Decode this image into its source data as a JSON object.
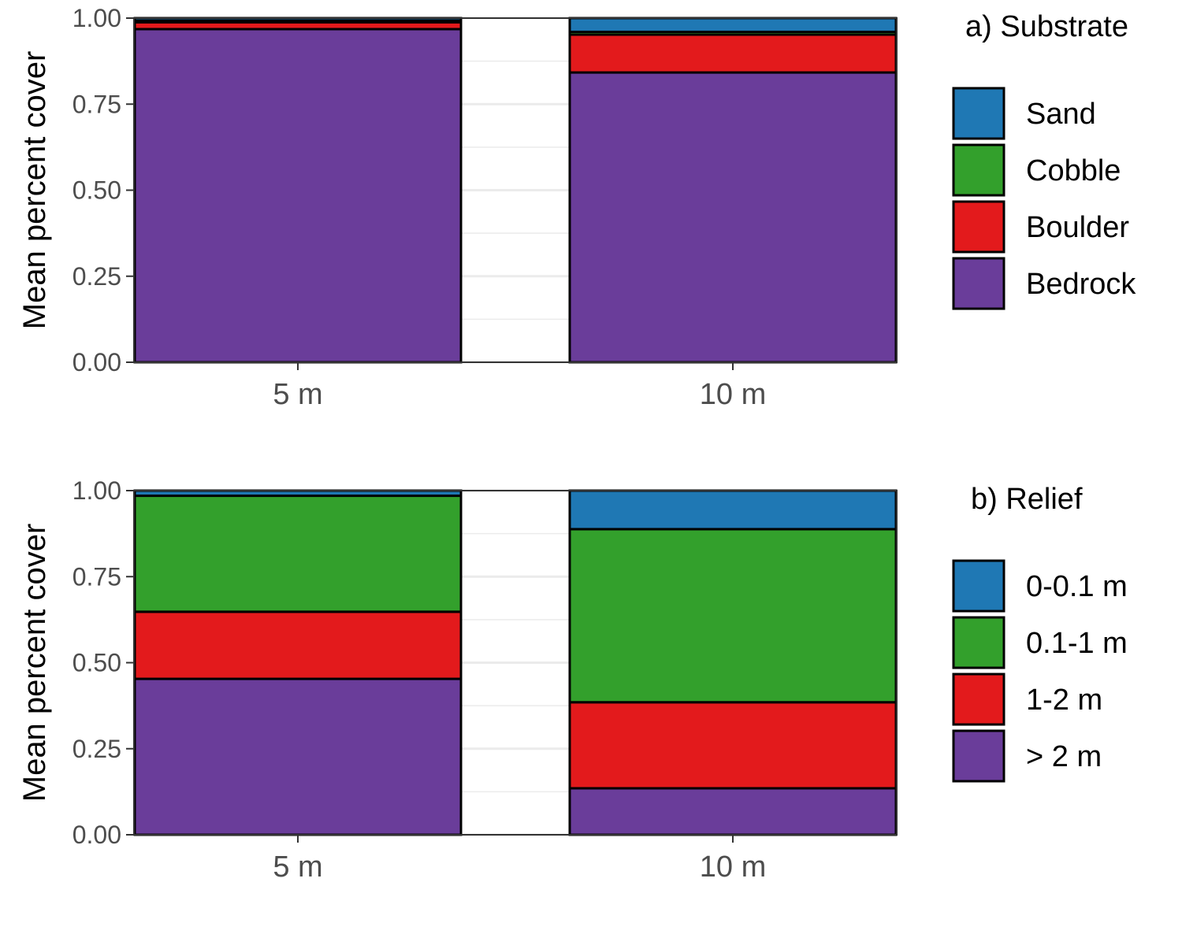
{
  "chart_data": [
    {
      "type": "bar",
      "stacked": true,
      "legend_title": "a) Substrate",
      "ylabel": "Mean percent cover",
      "xlabel": "",
      "categories": [
        "5 m",
        "10 m"
      ],
      "ylim": [
        0,
        1
      ],
      "yticks": [
        "0.00",
        "0.25",
        "0.50",
        "0.75",
        "1.00"
      ],
      "grid": true,
      "legend_position": "right",
      "series": [
        {
          "name": "Bedrock",
          "color": "#6a3d9a",
          "values": [
            0.968,
            0.842
          ]
        },
        {
          "name": "Boulder",
          "color": "#e31a1c",
          "values": [
            0.02,
            0.11
          ]
        },
        {
          "name": "Cobble",
          "color": "#33a02c",
          "values": [
            0.004,
            0.008
          ]
        },
        {
          "name": "Sand",
          "color": "#1f78b4",
          "values": [
            0.008,
            0.04
          ]
        }
      ]
    },
    {
      "type": "bar",
      "stacked": true,
      "legend_title": "b) Relief",
      "ylabel": "Mean percent cover",
      "xlabel": "",
      "categories": [
        "5 m",
        "10 m"
      ],
      "ylim": [
        0,
        1
      ],
      "yticks": [
        "0.00",
        "0.25",
        "0.50",
        "0.75",
        "1.00"
      ],
      "grid": true,
      "legend_position": "right",
      "series": [
        {
          "name": "> 2 m",
          "color": "#6a3d9a",
          "values": [
            0.453,
            0.135
          ]
        },
        {
          "name": "1-2 m",
          "color": "#e31a1c",
          "values": [
            0.195,
            0.25
          ]
        },
        {
          "name": "0.1-1 m",
          "color": "#33a02c",
          "values": [
            0.337,
            0.503
          ]
        },
        {
          "name": "0-0.1 m",
          "color": "#1f78b4",
          "values": [
            0.015,
            0.112
          ]
        }
      ]
    }
  ]
}
